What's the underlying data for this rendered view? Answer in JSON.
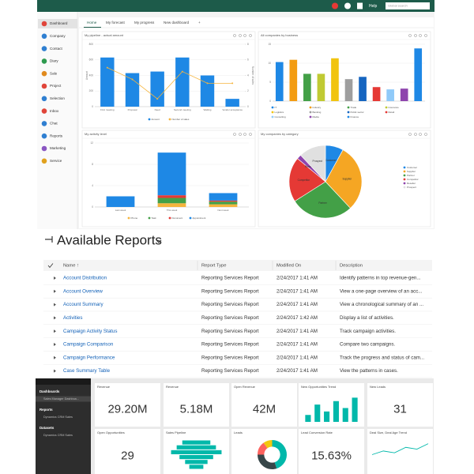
{
  "crm": {
    "top_bar": {
      "help": "Help",
      "search": "Global search"
    },
    "menu": [
      "Dashboard",
      "Company",
      "Contact",
      "Diary",
      "Sale",
      "Project",
      "Selection",
      "Inbox",
      "Chat",
      "Reports",
      "Marketing",
      "Service"
    ],
    "tabs": [
      "Home",
      "My forecast",
      "My progress",
      "New dashboard",
      "+"
    ],
    "pipeline": {
      "type": "bar",
      "title": "My pipeline - actual amount",
      "categories": [
        "First meeting",
        "Proposal",
        "Need",
        "Second meeting",
        "Waiting",
        "Vendor acceptance"
      ],
      "series": [
        {
          "name": "Amount",
          "color": "#1e88e5",
          "values": [
            630,
            430,
            450,
            630,
            400,
            100
          ]
        },
        {
          "name": "Number of sales",
          "color": "#f5b43c",
          "axis": "y2",
          "values": [
            5,
            3.5,
            1,
            4.5,
            3,
            3
          ]
        }
      ],
      "y_label": "Amount",
      "y2_label": "Number of sales",
      "ylim": [
        0,
        800
      ],
      "yticks": [
        0,
        200,
        400,
        600,
        800
      ],
      "y2lim": [
        0,
        8
      ],
      "y2ticks": [
        0,
        2,
        4,
        6,
        8
      ]
    },
    "business": {
      "type": "bar",
      "title": "All companies by business",
      "categories": [
        "IT",
        "Industry",
        "Trade",
        "Insurance",
        "Logistics",
        "Banking",
        "Public sector",
        "Retail",
        "Consulting",
        "Media",
        "Finance"
      ],
      "values": [
        10.3,
        10.9,
        7.2,
        7.2,
        11.3,
        5.8,
        6.4,
        3.7,
        3.1,
        3.3,
        13.9
      ],
      "colors": [
        "#1e88e5",
        "#f39c12",
        "#43a047",
        "#c0ca33",
        "#f1c40f",
        "#9e9e9e",
        "#1565c0",
        "#e53935",
        "#90caf9",
        "#8e44ad",
        "#1e88e5"
      ],
      "ylim": [
        0,
        15
      ],
      "yticks": [
        0,
        5,
        10,
        15
      ]
    },
    "activity": {
      "type": "bar",
      "stacked": true,
      "title": "My activity level",
      "categories": [
        "Last week",
        "This week",
        "Next week"
      ],
      "series": [
        {
          "name": "Phone",
          "color": "#f5b43c",
          "values": [
            0,
            0.7,
            0.5
          ]
        },
        {
          "name": "Task",
          "color": "#43a047",
          "values": [
            0,
            1,
            0.5
          ]
        },
        {
          "name": "Document",
          "color": "#e53935",
          "values": [
            0,
            0.5,
            0.2
          ]
        },
        {
          "name": "Appointment",
          "color": "#1e88e5",
          "values": [
            2,
            8,
            1.4
          ]
        }
      ],
      "ylim": [
        0,
        12
      ],
      "yticks": [
        0,
        4,
        8,
        12
      ]
    },
    "category": {
      "type": "pie",
      "title": "My companies by category",
      "labels": [
        "Customer",
        "Supplier",
        "Partner",
        "Competitor",
        "Reseller",
        "Prospect"
      ],
      "values": [
        8,
        30,
        28,
        20,
        2,
        12
      ],
      "colors": [
        "#1e88e5",
        "#f5a623",
        "#43a047",
        "#e53935",
        "#8e44ad",
        "#e0e0e0"
      ]
    }
  },
  "reports": {
    "title": "Available Reports",
    "columns": [
      "Name ↑",
      "Report Type",
      "Modified On",
      "Description"
    ],
    "rows": [
      [
        "Account Distribution",
        "Reporting Services Report",
        "2/24/2017 1:41 AM",
        "Identify patterns in top revenue-gen..."
      ],
      [
        "Account Overview",
        "Reporting Services Report",
        "2/24/2017 1:41 AM",
        "View a one-page overview of an acc..."
      ],
      [
        "Account Summary",
        "Reporting Services Report",
        "2/24/2017 1:41 AM",
        "View a chronological summary of an ..."
      ],
      [
        "Activities",
        "Reporting Services Report",
        "2/24/2017 1:42 AM",
        "Display a list of activities."
      ],
      [
        "Campaign Activity Status",
        "Reporting Services Report",
        "2/24/2017 1:41 AM",
        "Track campaign activities."
      ],
      [
        "Campaign Comparison",
        "Reporting Services Report",
        "2/24/2017 1:41 AM",
        "Compare two campaigns."
      ],
      [
        "Campaign Performance",
        "Reporting Services Report",
        "2/24/2017 1:41 AM",
        "Track the progress and status of cam..."
      ],
      [
        "Case Summary Table",
        "Reporting Services Report",
        "2/24/2017 1:41 AM",
        "View the patterns in cases."
      ]
    ]
  },
  "powerbi": {
    "nav": [
      {
        "label": "Dashboards",
        "items": [
          "Sales Manager Dashboa..."
        ]
      },
      {
        "label": "Reports",
        "items": [
          "Dynamics CRM Sales"
        ]
      },
      {
        "label": "Datasets",
        "items": [
          "Dynamics CRM Sales"
        ]
      }
    ],
    "tiles": [
      {
        "title": "Revenue",
        "value": "29.20M"
      },
      {
        "title": "Revenue",
        "value": "5.18M"
      },
      {
        "title": "Open Revenue",
        "value": "42M"
      },
      {
        "title": "New Opportunities Trend",
        "chart": {
          "type": "bar",
          "color": "#01b8aa",
          "values": [
            2,
            5,
            3,
            6,
            4,
            7
          ],
          "ylim": [
            0,
            8
          ]
        }
      },
      {
        "title": "New Leads",
        "value": "31"
      },
      {
        "title": "Open Opportunities",
        "value": "29"
      },
      {
        "title": "Sales Pipeline",
        "chart": {
          "type": "funnel",
          "color": "#01b8aa",
          "values": [
            10,
            14,
            18,
            12,
            8,
            5
          ],
          "xlim": [
            0,
            20
          ]
        }
      },
      {
        "title": "Leads",
        "chart": {
          "type": "donut",
          "values": [
            45,
            30,
            15,
            10
          ],
          "colors": [
            "#01b8aa",
            "#374649",
            "#fd625e",
            "#f2c80f"
          ]
        }
      },
      {
        "title": "Lead Conversion Rate",
        "value": "15.63%"
      },
      {
        "title": "Deal Size, Deal Age Trend",
        "chart": {
          "type": "line",
          "color": "#01b8aa",
          "values": [
            4,
            5,
            4.5,
            6,
            5.5,
            7
          ],
          "ylim": [
            0,
            8
          ]
        }
      }
    ]
  }
}
